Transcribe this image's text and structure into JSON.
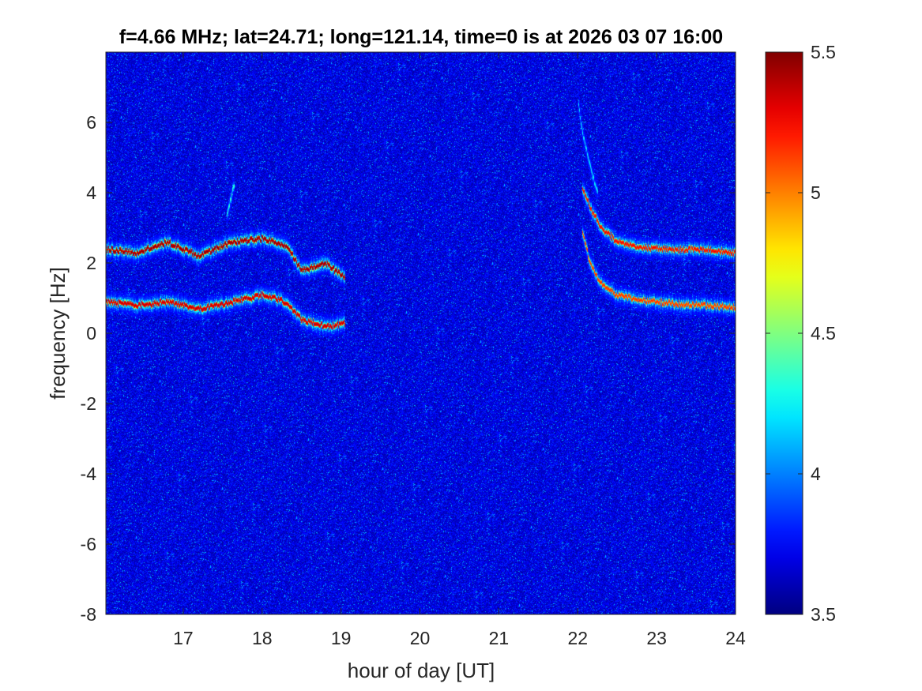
{
  "chart_data": {
    "type": "heatmap",
    "title": "f=4.66 MHz;  lat=24.71; long=121.14, time=0 is at 2026 03 07 16:00",
    "xlabel": "hour of day [UT]",
    "ylabel": "frequency [Hz]",
    "xlim": [
      16.02,
      24
    ],
    "ylim": [
      -8,
      8
    ],
    "x_ticks": [
      17,
      18,
      19,
      20,
      21,
      22,
      23,
      24
    ],
    "x_tick_labels": [
      "17",
      "18",
      "19",
      "20",
      "21",
      "22",
      "23",
      "24"
    ],
    "y_ticks": [
      -8,
      -6,
      -4,
      -2,
      0,
      2,
      4,
      6
    ],
    "y_tick_labels": [
      "-8",
      "-6",
      "-4",
      "-2",
      "0",
      "2",
      "4",
      "6"
    ],
    "colorbar": {
      "colormap": "jet",
      "clim": [
        3.5,
        5.5
      ],
      "ticks": [
        3.5,
        4,
        4.5,
        5,
        5.5
      ],
      "tick_labels": [
        "3.5",
        "4",
        "4.5",
        "5",
        "5.5"
      ]
    },
    "background_level": 3.7,
    "traces": [
      {
        "x": [
          16.02,
          16.4,
          16.8,
          17.2,
          17.6,
          18.0,
          18.3,
          18.5,
          18.8,
          19.05
        ],
        "y": [
          2.4,
          2.3,
          2.6,
          2.2,
          2.6,
          2.7,
          2.5,
          1.8,
          2.0,
          1.6
        ],
        "intensity": 5.5
      },
      {
        "x": [
          16.02,
          16.4,
          16.8,
          17.2,
          17.6,
          18.0,
          18.3,
          18.5,
          18.8,
          19.05
        ],
        "y": [
          0.9,
          0.8,
          0.9,
          0.7,
          0.9,
          1.1,
          0.9,
          0.4,
          0.2,
          0.3
        ],
        "intensity": 5.4
      },
      {
        "x": [
          22.05,
          22.15,
          22.3,
          22.5,
          22.8,
          23.2,
          23.6,
          24.0
        ],
        "y": [
          4.2,
          3.6,
          3.0,
          2.6,
          2.45,
          2.4,
          2.4,
          2.3
        ],
        "intensity": 5.3
      },
      {
        "x": [
          22.05,
          22.15,
          22.3,
          22.5,
          22.8,
          23.2,
          23.6,
          24.0
        ],
        "y": [
          3.0,
          2.0,
          1.4,
          1.1,
          0.95,
          0.85,
          0.8,
          0.75
        ],
        "intensity": 5.2
      },
      {
        "x": [
          17.55,
          17.65
        ],
        "y": [
          3.4,
          4.3
        ],
        "intensity": 4.4
      },
      {
        "x": [
          22.0,
          22.05,
          22.15,
          22.25
        ],
        "y": [
          6.6,
          5.8,
          4.8,
          4.0
        ],
        "intensity": 4.3
      }
    ]
  }
}
